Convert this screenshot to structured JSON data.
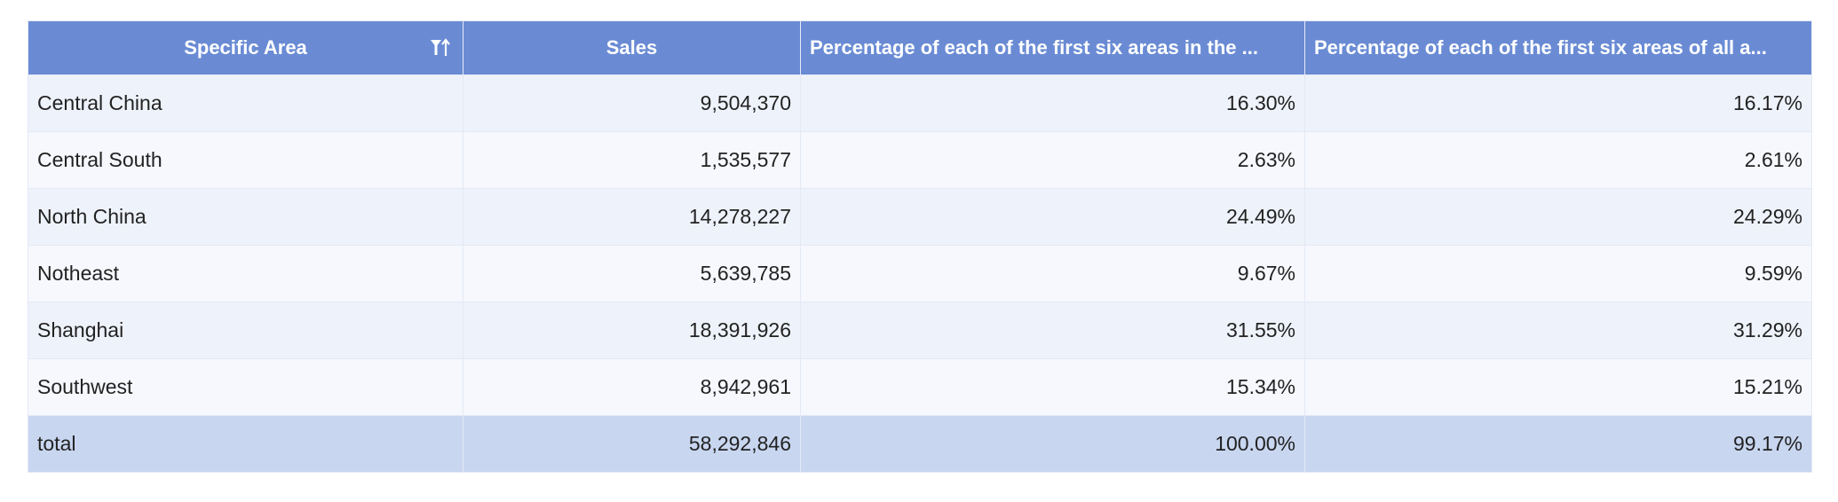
{
  "table": {
    "headers": [
      "Specific Area",
      "Sales",
      "Percentage of each of the first six areas in the ...",
      "Percentage of each of the first six areas of all a..."
    ],
    "rows": [
      {
        "area": "Central China",
        "sales": "9,504,370",
        "pct_first_six": "16.30%",
        "pct_all": "16.17%"
      },
      {
        "area": "Central South",
        "sales": "1,535,577",
        "pct_first_six": "2.63%",
        "pct_all": "2.61%"
      },
      {
        "area": "North China",
        "sales": "14,278,227",
        "pct_first_six": "24.49%",
        "pct_all": "24.29%"
      },
      {
        "area": "Notheast",
        "sales": "5,639,785",
        "pct_first_six": "9.67%",
        "pct_all": "9.59%"
      },
      {
        "area": "Shanghai",
        "sales": "18,391,926",
        "pct_first_six": "31.55%",
        "pct_all": "31.29%"
      },
      {
        "area": "Southwest",
        "sales": "8,942,961",
        "pct_first_six": "15.34%",
        "pct_all": "15.21%"
      }
    ],
    "total": {
      "area": "total",
      "sales": "58,292,846",
      "pct_first_six": "100.00%",
      "pct_all": "99.17%"
    },
    "sort_icon": "sort-icon"
  },
  "colors": {
    "header_bg": "#6a8bd4",
    "row_odd": "#eef2fa",
    "row_even": "#f6f8fd",
    "total_bg": "#c8d6f0"
  }
}
